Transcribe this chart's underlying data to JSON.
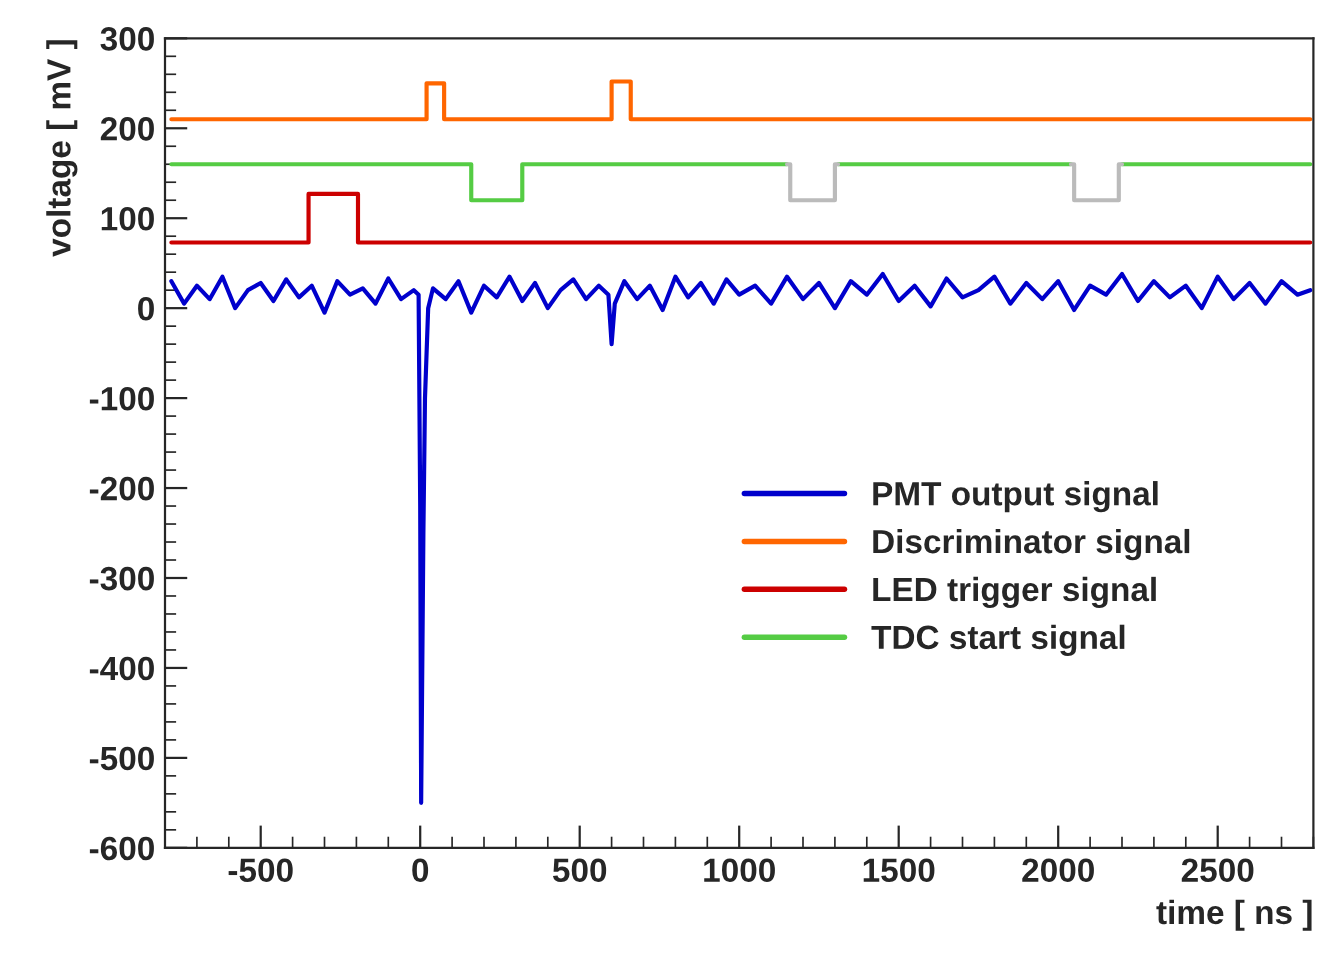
{
  "chart_data": {
    "type": "line",
    "xlabel": "time [ ns ]",
    "ylabel": "voltage [ mV ]",
    "xlim": [
      -800,
      2800
    ],
    "ylim": [
      -600,
      300
    ],
    "xticks": [
      -500,
      0,
      500,
      1000,
      1500,
      2000,
      2500
    ],
    "yticks": [
      -600,
      -500,
      -400,
      -300,
      -200,
      -100,
      0,
      100,
      200,
      300
    ],
    "grid": false,
    "legend": "bottom right",
    "marker": "none",
    "line_style": "solid",
    "series": [
      {
        "name": "PMT output signal",
        "color": "#0000cc",
        "x": [
          -780,
          -740,
          -700,
          -660,
          -620,
          -580,
          -540,
          -500,
          -460,
          -420,
          -380,
          -340,
          -300,
          -260,
          -220,
          -180,
          -140,
          -100,
          -60,
          -20,
          -5,
          0,
          3,
          6,
          10,
          15,
          25,
          40,
          80,
          120,
          160,
          200,
          240,
          280,
          320,
          360,
          400,
          440,
          480,
          520,
          560,
          590,
          600,
          610,
          640,
          680,
          720,
          760,
          800,
          840,
          880,
          920,
          960,
          1000,
          1050,
          1100,
          1150,
          1200,
          1250,
          1300,
          1350,
          1400,
          1450,
          1500,
          1550,
          1600,
          1650,
          1700,
          1750,
          1800,
          1850,
          1900,
          1950,
          2000,
          2050,
          2100,
          2150,
          2200,
          2250,
          2300,
          2350,
          2400,
          2450,
          2500,
          2550,
          2600,
          2650,
          2700,
          2750,
          2790
        ],
        "values": [
          30,
          5,
          25,
          10,
          35,
          0,
          20,
          28,
          8,
          32,
          12,
          25,
          -5,
          30,
          15,
          22,
          5,
          33,
          10,
          20,
          15,
          -220,
          -550,
          -420,
          -250,
          -100,
          0,
          22,
          10,
          30,
          -5,
          25,
          12,
          35,
          8,
          28,
          0,
          20,
          32,
          10,
          25,
          15,
          -40,
          5,
          30,
          10,
          25,
          -2,
          35,
          12,
          28,
          5,
          32,
          15,
          25,
          5,
          35,
          10,
          28,
          0,
          30,
          15,
          38,
          8,
          25,
          2,
          33,
          12,
          20,
          35,
          5,
          28,
          10,
          30,
          -2,
          25,
          15,
          38,
          8,
          30,
          12,
          25,
          0,
          35,
          10,
          28,
          5,
          30,
          15,
          20
        ]
      },
      {
        "name": "Discriminator signal",
        "color": "#ff6600",
        "x": [
          -780,
          20,
          20,
          75,
          75,
          600,
          600,
          660,
          660,
          2790
        ],
        "values": [
          210,
          210,
          250,
          250,
          210,
          210,
          252,
          252,
          210,
          210
        ]
      },
      {
        "name": "LED trigger signal",
        "color": "#cc0000",
        "x": [
          -780,
          -350,
          -350,
          -195,
          -195,
          2790
        ],
        "values": [
          73,
          73,
          127,
          127,
          73,
          73
        ]
      },
      {
        "name": "TDC start signal",
        "color": "#55cc44",
        "x": [
          -780,
          160,
          160,
          320,
          320,
          1150,
          1155,
          1305,
          1310,
          2040,
          2045,
          2195,
          2200,
          2790
        ],
        "values": [
          160,
          160,
          120,
          120,
          160,
          160,
          null,
          null,
          160,
          160,
          null,
          null,
          160,
          160
        ]
      },
      {
        "color": "#bbbbbb",
        "x": [
          1150,
          1160,
          1160,
          1300,
          1300,
          1310,
          1700,
          2040,
          2050,
          2050,
          2190,
          2190,
          2200
        ],
        "values": [
          160,
          160,
          120,
          120,
          160,
          160,
          null,
          160,
          160,
          120,
          120,
          160,
          160
        ]
      }
    ]
  }
}
